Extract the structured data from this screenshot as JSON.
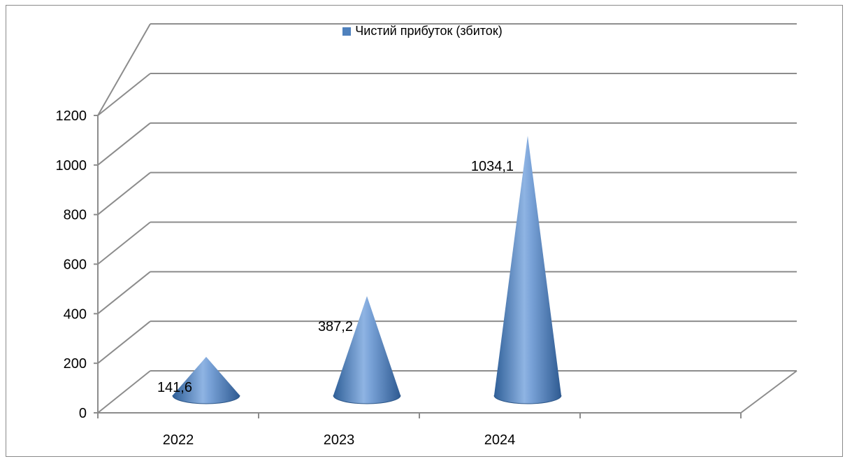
{
  "chart_data": {
    "type": "bar",
    "style": "3d-cone",
    "categories": [
      "2022",
      "2023",
      "2024"
    ],
    "series": [
      {
        "name": "Чистий прибуток (збиток)",
        "values": [
          141.6,
          387.2,
          1034.1
        ],
        "labels": [
          "141,6",
          "387,2",
          "1034,1"
        ]
      }
    ],
    "title": "",
    "xlabel": "",
    "ylabel": "",
    "ylim": [
      0,
      1200
    ],
    "yticks": [
      0,
      200,
      400,
      600,
      800,
      1000,
      1200
    ],
    "grid": true,
    "legend_position": "top",
    "series_color": "#4f81bd"
  }
}
